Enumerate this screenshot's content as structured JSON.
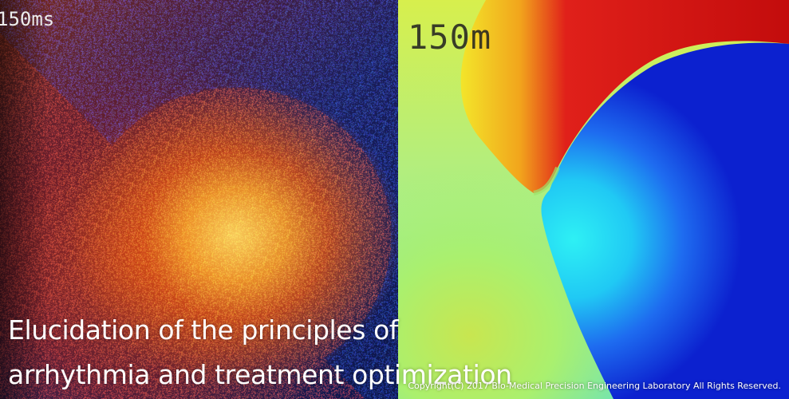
{
  "left_panel": {
    "time_label": "150ms"
  },
  "right_panel": {
    "time_label": "150m"
  },
  "caption": {
    "line1": "Elucidation of the principles of",
    "line2": "arrhythmia and treatment optimization"
  },
  "footer": {
    "copyright": "Copyright(C) 2017 Bio-Medical Precision Engineering Laboratory All Rights Reserved."
  },
  "colors": {
    "isochrone_red": "#c80d0d",
    "isochrone_blue": "#0b1fd0",
    "isochrone_cyan": "#22d9f0",
    "isochrone_yellow": "#f2f01e"
  }
}
